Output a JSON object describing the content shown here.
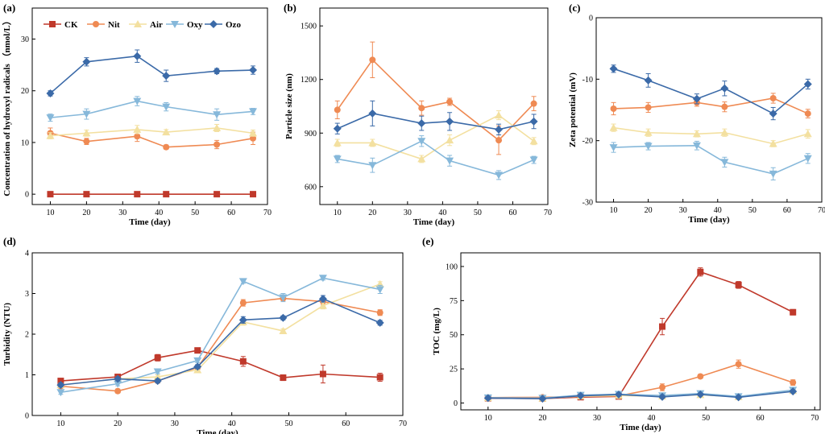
{
  "colors": {
    "CK": "#c0392b",
    "Nit": "#ef8a53",
    "Air": "#f3e0a0",
    "Oxy": "#86b8da",
    "Ozo": "#3b6aa8"
  },
  "markers": {
    "CK": "square",
    "Nit": "circle",
    "Air": "triangle-up",
    "Oxy": "triangle-down",
    "Ozo": "diamond"
  },
  "legend": [
    "CK",
    "Nit",
    "Air",
    "Oxy",
    "Ozo"
  ],
  "chart_data": [
    {
      "id": "a",
      "label": "(a)",
      "type": "line",
      "xlabel": "Time (day)",
      "ylabel": "Concentration of hydroxyl radicals （nmol/L）",
      "xlim": [
        5,
        70
      ],
      "ylim": [
        -2,
        36
      ],
      "xticks": [
        10,
        20,
        30,
        40,
        50,
        60,
        70
      ],
      "yticks": [
        0,
        10,
        20,
        30
      ],
      "x": [
        10,
        20,
        34,
        42,
        56,
        66
      ],
      "series": [
        {
          "name": "CK",
          "values": [
            0,
            0,
            0,
            0,
            0,
            0
          ],
          "err": [
            0.3,
            0.3,
            0.3,
            0.3,
            0.3,
            0.3
          ]
        },
        {
          "name": "Nit",
          "values": [
            11.8,
            10.2,
            11.2,
            9.1,
            9.6,
            10.8
          ],
          "err": [
            1.0,
            0.6,
            1.0,
            0.4,
            0.8,
            1.2
          ]
        },
        {
          "name": "Air",
          "values": [
            11.3,
            11.8,
            12.5,
            12.0,
            12.8,
            11.8
          ],
          "err": [
            0.6,
            0.6,
            0.8,
            0.5,
            0.7,
            0.6
          ]
        },
        {
          "name": "Oxy",
          "values": [
            14.8,
            15.5,
            18.0,
            16.9,
            15.4,
            16.0
          ],
          "err": [
            0.7,
            1.0,
            0.9,
            0.8,
            1.1,
            0.6
          ]
        },
        {
          "name": "Ozo",
          "values": [
            19.5,
            25.6,
            26.7,
            22.9,
            23.8,
            24.0
          ],
          "err": [
            0.5,
            0.8,
            1.2,
            1.1,
            0.5,
            0.8
          ]
        }
      ]
    },
    {
      "id": "b",
      "label": "(b)",
      "type": "line",
      "xlabel": "Time (day)",
      "ylabel": "Particle size (nm)",
      "xlim": [
        5,
        70
      ],
      "ylim": [
        500,
        1600
      ],
      "xticks": [
        10,
        20,
        30,
        40,
        50,
        60,
        70
      ],
      "yticks": [
        600,
        900,
        1200,
        1500
      ],
      "x": [
        10,
        20,
        34,
        42,
        56,
        66
      ],
      "series": [
        {
          "name": "Nit",
          "values": [
            1030,
            1310,
            1040,
            1075,
            860,
            1065
          ],
          "err": [
            50,
            100,
            40,
            20,
            80,
            40
          ]
        },
        {
          "name": "Air",
          "values": [
            845,
            845,
            755,
            860,
            1000,
            855
          ],
          "err": [
            20,
            20,
            20,
            30,
            25,
            20
          ]
        },
        {
          "name": "Oxy",
          "values": [
            755,
            720,
            855,
            745,
            665,
            750
          ],
          "err": [
            20,
            40,
            30,
            30,
            25,
            20
          ]
        },
        {
          "name": "Ozo",
          "values": [
            925,
            1010,
            955,
            965,
            920,
            965
          ],
          "err": [
            30,
            70,
            40,
            50,
            30,
            40
          ]
        }
      ]
    },
    {
      "id": "c",
      "label": "(c)",
      "type": "line",
      "xlabel": "Time (day)",
      "ylabel": "Zeta potential (mV)",
      "xlim": [
        5,
        70
      ],
      "ylim": [
        -30,
        0
      ],
      "xticks": [
        10,
        20,
        30,
        40,
        50,
        60,
        70
      ],
      "yticks": [
        0,
        -10,
        -20,
        -30
      ],
      "x": [
        10,
        20,
        34,
        42,
        56,
        66
      ],
      "series": [
        {
          "name": "Nit",
          "values": [
            -14.8,
            -14.6,
            -13.8,
            -14.5,
            -13.1,
            -15.6
          ],
          "err": [
            1.0,
            0.8,
            0.6,
            0.8,
            0.8,
            0.7
          ]
        },
        {
          "name": "Air",
          "values": [
            -17.9,
            -18.7,
            -18.9,
            -18.7,
            -20.5,
            -18.9
          ],
          "err": [
            0.6,
            0.6,
            0.5,
            0.6,
            0.5,
            0.7
          ]
        },
        {
          "name": "Oxy",
          "values": [
            -21.1,
            -20.9,
            -20.8,
            -23.5,
            -25.4,
            -22.9
          ],
          "err": [
            0.8,
            0.6,
            0.7,
            0.8,
            1.0,
            0.8
          ]
        },
        {
          "name": "Ozo",
          "values": [
            -8.3,
            -10.2,
            -13.2,
            -11.5,
            -15.6,
            -10.8
          ],
          "err": [
            0.6,
            1.1,
            0.8,
            1.2,
            1.0,
            0.8
          ]
        }
      ]
    },
    {
      "id": "d",
      "label": "(d)",
      "type": "line",
      "xlabel": "Time (day)",
      "ylabel": "Turbidity (NTU)",
      "xlim": [
        5,
        70
      ],
      "ylim": [
        0,
        4
      ],
      "xticks": [
        10,
        20,
        30,
        40,
        50,
        60,
        70
      ],
      "yticks": [
        0,
        1,
        2,
        3,
        4
      ],
      "x": [
        10,
        20,
        27,
        34,
        42,
        49,
        56,
        66
      ],
      "series": [
        {
          "name": "CK",
          "values": [
            0.85,
            0.95,
            1.42,
            1.6,
            1.33,
            0.93,
            1.02,
            0.94
          ],
          "err": [
            0.05,
            0.05,
            0.08,
            0.05,
            0.12,
            0.07,
            0.22,
            0.1
          ]
        },
        {
          "name": "Nit",
          "values": [
            0.72,
            0.6,
            0.85,
            1.18,
            2.77,
            2.88,
            2.8,
            2.53
          ],
          "err": [
            0.05,
            0.05,
            0.05,
            0.05,
            0.08,
            0.05,
            0.08,
            0.07
          ]
        },
        {
          "name": "Air",
          "values": [
            0.75,
            0.9,
            0.95,
            1.12,
            2.3,
            2.08,
            2.7,
            3.23
          ],
          "err": [
            0.05,
            0.05,
            0.05,
            0.05,
            0.08,
            0.05,
            0.08,
            0.06
          ]
        },
        {
          "name": "Oxy",
          "values": [
            0.57,
            0.78,
            1.08,
            1.35,
            3.3,
            2.9,
            3.38,
            3.1
          ],
          "err": [
            0.05,
            0.05,
            0.05,
            0.05,
            0.05,
            0.1,
            0.05,
            0.1
          ]
        },
        {
          "name": "Ozo",
          "values": [
            0.75,
            0.9,
            0.85,
            1.2,
            2.35,
            2.4,
            2.87,
            2.28
          ],
          "err": [
            0.05,
            0.05,
            0.05,
            0.05,
            0.08,
            0.05,
            0.08,
            0.06
          ]
        }
      ]
    },
    {
      "id": "e",
      "label": "(e)",
      "type": "line",
      "xlabel": "Time (day)",
      "ylabel": "TOC (mg/L)",
      "xlim": [
        5,
        71
      ],
      "ylim": [
        -5,
        110
      ],
      "xticks": [
        10,
        20,
        30,
        40,
        50,
        60,
        70
      ],
      "yticks": [
        0,
        25,
        50,
        75,
        100
      ],
      "x": [
        10,
        20,
        27,
        34,
        42,
        49,
        56,
        66
      ],
      "series": [
        {
          "name": "CK",
          "values": [
            3.5,
            3.3,
            4.3,
            4.8,
            56,
            96,
            86.5,
            66.5
          ],
          "err": [
            0.6,
            0.6,
            0.6,
            0.6,
            6,
            3,
            2.5,
            2
          ]
        },
        {
          "name": "Nit",
          "values": [
            4.0,
            4.2,
            4.8,
            5.2,
            11.5,
            19.5,
            28.5,
            15
          ],
          "err": [
            0.6,
            0.6,
            0.6,
            0.6,
            2.5,
            1.5,
            3,
            2
          ]
        },
        {
          "name": "Air",
          "values": [
            3.8,
            3.4,
            5.0,
            5.5,
            5.0,
            6.0,
            4.5,
            9.0
          ],
          "err": [
            0.5,
            0.5,
            0.5,
            0.5,
            0.5,
            0.5,
            0.5,
            1
          ]
        },
        {
          "name": "Oxy",
          "values": [
            3.9,
            3.6,
            5.8,
            6.5,
            5.5,
            7.0,
            4.8,
            9.5
          ],
          "err": [
            0.5,
            0.5,
            0.5,
            0.5,
            0.5,
            0.5,
            0.5,
            1
          ]
        },
        {
          "name": "Ozo",
          "values": [
            3.6,
            3.2,
            5.3,
            6.2,
            4.5,
            6.3,
            4.2,
            8.5
          ],
          "err": [
            0.5,
            0.5,
            0.5,
            0.5,
            0.5,
            0.5,
            0.5,
            1
          ]
        }
      ]
    }
  ]
}
